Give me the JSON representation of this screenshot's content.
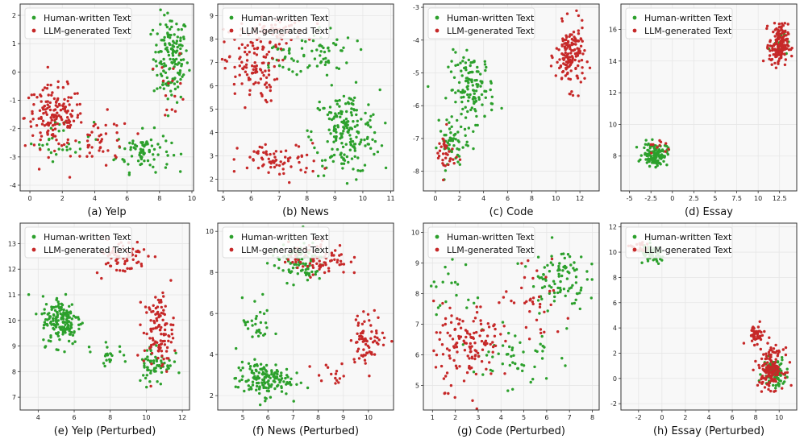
{
  "legend": [
    "Human-written Text",
    "LLM-generated Text"
  ],
  "colors": {
    "human": "#2ca02c",
    "llm": "#c62828",
    "panel_bg": "#f8f8f8",
    "grid": "#e6e6e6"
  },
  "chart_data": [
    {
      "type": "scatter",
      "title": "(a) Yelp",
      "xlim": [
        -0.6,
        10.1
      ],
      "ylim": [
        -4.2,
        2.4
      ],
      "xticks": [
        0,
        2,
        4,
        6,
        8,
        10
      ],
      "yticks": [
        -4,
        -3,
        -2,
        -1,
        0,
        1,
        2
      ],
      "series": [
        {
          "name": "Human-written Text",
          "clusters": [
            [
              8.7,
              0.5,
              0.9,
              1.3,
              150
            ],
            [
              7.0,
              -2.8,
              1.4,
              0.6,
              80
            ],
            [
              2.0,
              -2.4,
              1.6,
              0.6,
              30
            ]
          ]
        },
        {
          "name": "LLM-generated Text",
          "clusters": [
            [
              1.5,
              -1.6,
              1.5,
              0.9,
              160
            ],
            [
              4.5,
              -2.5,
              1.5,
              0.8,
              40
            ],
            [
              8.8,
              -0.5,
              0.7,
              1.0,
              15
            ]
          ]
        }
      ]
    },
    {
      "type": "scatter",
      "title": "(b) News",
      "xlim": [
        4.8,
        11.1
      ],
      "ylim": [
        1.5,
        9.5
      ],
      "xticks": [
        5,
        6,
        7,
        8,
        9,
        10,
        11
      ],
      "yticks": [
        2,
        3,
        4,
        5,
        6,
        7,
        8,
        9
      ],
      "series": [
        {
          "name": "Human-written Text",
          "clusters": [
            [
              9.4,
              4.0,
              1.0,
              1.5,
              190
            ],
            [
              8.5,
              7.5,
              1.0,
              0.9,
              60
            ],
            [
              7.0,
              7.2,
              0.6,
              0.6,
              20
            ]
          ]
        },
        {
          "name": "LLM-generated Text",
          "clusters": [
            [
              6.0,
              6.8,
              0.8,
              1.3,
              110
            ],
            [
              7.0,
              2.8,
              1.2,
              0.6,
              70
            ],
            [
              6.8,
              8.3,
              1.0,
              0.5,
              60
            ]
          ]
        }
      ]
    },
    {
      "type": "scatter",
      "title": "(c) Code",
      "xlim": [
        -1.0,
        13.6
      ],
      "ylim": [
        -8.6,
        -2.9
      ],
      "xticks": [
        0,
        2,
        4,
        6,
        8,
        10,
        12
      ],
      "yticks": [
        -8,
        -7,
        -6,
        -5,
        -4,
        -3
      ],
      "series": [
        {
          "name": "Human-written Text",
          "clusters": [
            [
              3.0,
              -5.5,
              1.6,
              0.9,
              130
            ],
            [
              1.5,
              -7.2,
              1.0,
              0.6,
              50
            ]
          ]
        },
        {
          "name": "LLM-generated Text",
          "clusters": [
            [
              11.2,
              -4.5,
              1.0,
              0.8,
              150
            ],
            [
              0.8,
              -7.5,
              0.7,
              0.6,
              35
            ]
          ]
        }
      ]
    },
    {
      "type": "scatter",
      "title": "(d) Essay",
      "xlim": [
        -6.0,
        14.5
      ],
      "ylim": [
        5.8,
        17.6
      ],
      "xticks": [
        -5.0,
        -2.5,
        0.0,
        2.5,
        5.0,
        7.5,
        10.0,
        12.5
      ],
      "yticks": [
        8,
        10,
        12,
        14,
        16
      ],
      "series": [
        {
          "name": "Human-written Text",
          "clusters": [
            [
              -2.0,
              8.1,
              1.2,
              0.6,
              120
            ],
            [
              12.5,
              15.5,
              0.8,
              0.8,
              12
            ]
          ]
        },
        {
          "name": "LLM-generated Text",
          "clusters": [
            [
              12.4,
              15.0,
              0.9,
              1.1,
              160
            ],
            [
              -1.5,
              8.5,
              1.0,
              0.5,
              10
            ]
          ]
        }
      ]
    },
    {
      "type": "scatter",
      "title": "(e) Yelp (Perturbed)",
      "xlim": [
        3.0,
        12.4
      ],
      "ylim": [
        6.5,
        13.8
      ],
      "xticks": [
        4,
        6,
        8,
        10,
        12
      ],
      "yticks": [
        7,
        8,
        9,
        10,
        11,
        12,
        13
      ],
      "series": [
        {
          "name": "Human-written Text",
          "clusters": [
            [
              5.3,
              10.0,
              0.9,
              0.8,
              160
            ],
            [
              10.5,
              8.3,
              0.8,
              0.7,
              60
            ],
            [
              8.0,
              8.7,
              0.8,
              0.3,
              20
            ]
          ]
        },
        {
          "name": "LLM-generated Text",
          "clusters": [
            [
              8.6,
              12.5,
              1.2,
              0.6,
              70
            ],
            [
              10.7,
              9.6,
              0.7,
              1.2,
              110
            ]
          ]
        }
      ]
    },
    {
      "type": "scatter",
      "title": "(f) News (Perturbed)",
      "xlim": [
        4.0,
        11.0
      ],
      "ylim": [
        1.3,
        10.4
      ],
      "xticks": [
        5,
        6,
        7,
        8,
        9,
        10
      ],
      "yticks": [
        2,
        4,
        6,
        8,
        10
      ],
      "series": [
        {
          "name": "Human-written Text",
          "clusters": [
            [
              5.8,
              2.8,
              0.9,
              0.7,
              150
            ],
            [
              7.2,
              8.5,
              0.9,
              0.8,
              90
            ],
            [
              5.6,
              5.5,
              0.5,
              1.0,
              30
            ]
          ]
        },
        {
          "name": "LLM-generated Text",
          "clusters": [
            [
              8.0,
              8.7,
              1.0,
              0.7,
              80
            ],
            [
              10.0,
              4.8,
              0.6,
              1.0,
              70
            ],
            [
              8.5,
              3.0,
              0.7,
              0.5,
              15
            ]
          ]
        }
      ]
    },
    {
      "type": "scatter",
      "title": "(g) Code (Perturbed)",
      "xlim": [
        0.6,
        8.3
      ],
      "ylim": [
        4.2,
        10.3
      ],
      "xticks": [
        1,
        2,
        3,
        4,
        5,
        6,
        7,
        8
      ],
      "yticks": [
        5,
        6,
        7,
        8,
        9,
        10
      ],
      "series": [
        {
          "name": "Human-written Text",
          "clusters": [
            [
              6.5,
              8.5,
              1.0,
              0.9,
              90
            ],
            [
              4.5,
              6.0,
              1.5,
              1.0,
              50
            ],
            [
              2.0,
              8.0,
              1.0,
              0.9,
              20
            ]
          ]
        },
        {
          "name": "LLM-generated Text",
          "clusters": [
            [
              2.5,
              6.3,
              1.2,
              1.1,
              130
            ],
            [
              5.5,
              7.5,
              1.5,
              1.0,
              40
            ]
          ]
        }
      ]
    },
    {
      "type": "scatter",
      "title": "(h) Essay (Perturbed)",
      "xlim": [
        -3.5,
        11.5
      ],
      "ylim": [
        -2.5,
        12.3
      ],
      "xticks": [
        -2,
        0,
        2,
        4,
        6,
        8,
        10
      ],
      "yticks": [
        -2,
        0,
        2,
        4,
        6,
        8,
        10,
        12
      ],
      "series": [
        {
          "name": "Human-written Text",
          "clusters": [
            [
              -0.8,
              9.8,
              0.9,
              0.6,
              80
            ],
            [
              9.6,
              0.5,
              0.8,
              1.0,
              80
            ]
          ]
        },
        {
          "name": "LLM-generated Text",
          "clusters": [
            [
              9.3,
              0.8,
              0.9,
              1.3,
              150
            ],
            [
              8.0,
              3.5,
              0.7,
              0.6,
              40
            ],
            [
              -2.0,
              10.3,
              0.7,
              0.4,
              25
            ]
          ]
        }
      ]
    }
  ]
}
